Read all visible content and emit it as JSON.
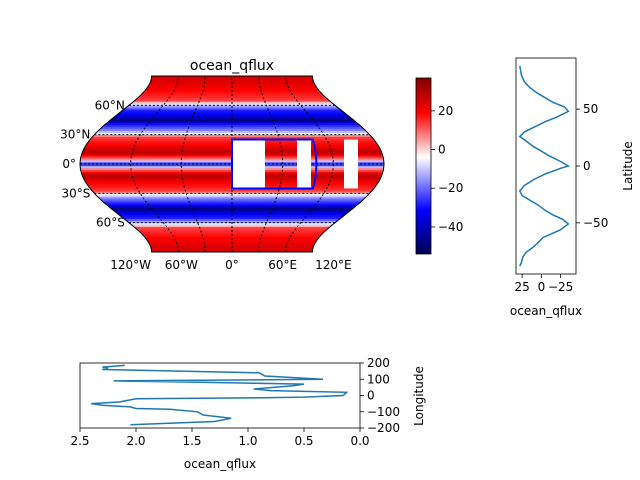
{
  "chart_data": [
    {
      "type": "heatmap",
      "title": "ocean_qflux",
      "projection": "robinson",
      "lat_tick_labels": [
        "60°N",
        "30°N",
        "0°",
        "30°S",
        "60°S"
      ],
      "lat_ticks": [
        60,
        30,
        0,
        -30,
        -60
      ],
      "lon_tick_labels": [
        "120°W",
        "60°W",
        "0°",
        "60°E",
        "120°E"
      ],
      "lon_ticks": [
        -120,
        -60,
        0,
        60,
        120
      ],
      "colormap": "seismic",
      "colorbar": {
        "ticks": [
          20,
          0,
          -20,
          -40
        ],
        "tick_labels": [
          "20",
          "0",
          "−20",
          "−40"
        ],
        "range": [
          -54,
          37
        ]
      },
      "band_values_by_latitude": {
        "lat": [
          -85,
          -75,
          -65,
          -55,
          -45,
          -35,
          -28,
          -20,
          -12,
          -5,
          0,
          5,
          12,
          20,
          28,
          35,
          45,
          55,
          65,
          75,
          85
        ],
        "value": [
          25,
          20,
          15,
          -35,
          -50,
          -20,
          15,
          20,
          30,
          10,
          -40,
          10,
          30,
          20,
          15,
          -20,
          -50,
          -35,
          15,
          20,
          25
        ]
      },
      "highlight_region": {
        "lon_range": [
          0,
          110
        ],
        "lat_range": [
          -25,
          25
        ],
        "color": "#0000ff"
      }
    },
    {
      "type": "line",
      "xlabel": "ocean_qflux",
      "ylabel": "Latitude",
      "x_tick_labels": [
        "25",
        "0",
        "−25"
      ],
      "x_ticks": [
        25,
        0,
        -25
      ],
      "x_inverted": true,
      "xlim": [
        33,
        -45
      ],
      "y_tick_labels": [
        "50",
        "0",
        "−50"
      ],
      "y_ticks": [
        50,
        0,
        -50
      ],
      "ylim": [
        -95,
        95
      ],
      "x": [
        28,
        26,
        24,
        20,
        12,
        5,
        -2,
        -12,
        -25,
        -35,
        -28,
        -15,
        -5,
        5,
        15,
        25,
        28,
        22,
        10,
        -5,
        -25,
        -35,
        -25,
        -10,
        0,
        10,
        20,
        28,
        22,
        10,
        -5,
        -20,
        -35,
        -30,
        -15,
        -5,
        5,
        15,
        22,
        26,
        28
      ],
      "y": [
        -88,
        -85,
        -80,
        -76,
        -72,
        -68,
        -63,
        -60,
        -56,
        -51,
        -47,
        -43,
        -39,
        -34,
        -30,
        -26,
        -22,
        -17,
        -12,
        -7,
        -2,
        0,
        4,
        9,
        13,
        17,
        22,
        26,
        30,
        34,
        39,
        43,
        48,
        52,
        56,
        60,
        64,
        69,
        74,
        80,
        88
      ]
    },
    {
      "type": "line",
      "xlabel": "ocean_qflux",
      "ylabel": "Longitude",
      "x_tick_labels": [
        "2.5",
        "2.0",
        "1.5",
        "1.0",
        "0.5",
        "0.0"
      ],
      "x_ticks": [
        2.5,
        2.0,
        1.5,
        1.0,
        0.5,
        0.0
      ],
      "x_inverted": true,
      "xlim": [
        2.5,
        0.0
      ],
      "y_tick_labels": [
        "200",
        "100",
        "0",
        "−100",
        "−200"
      ],
      "y_ticks": [
        200,
        100,
        0,
        -100,
        -200
      ],
      "ylim": [
        -200,
        200
      ],
      "x": [
        2.05,
        1.3,
        1.15,
        1.4,
        1.45,
        1.7,
        2.0,
        2.05,
        2.3,
        2.4,
        2.15,
        2.0,
        1.0,
        0.5,
        0.15,
        0.12,
        0.8,
        0.95,
        0.6,
        0.5,
        1.3,
        2.2,
        0.33,
        0.85,
        0.9,
        2.3,
        2.25,
        2.3,
        2.2,
        2.1
      ],
      "y": [
        -180,
        -160,
        -140,
        -120,
        -100,
        -85,
        -80,
        -70,
        -60,
        -50,
        -40,
        -20,
        -15,
        -10,
        0,
        20,
        30,
        40,
        60,
        70,
        80,
        90,
        100,
        120,
        140,
        160,
        170,
        175,
        180,
        185
      ]
    }
  ]
}
